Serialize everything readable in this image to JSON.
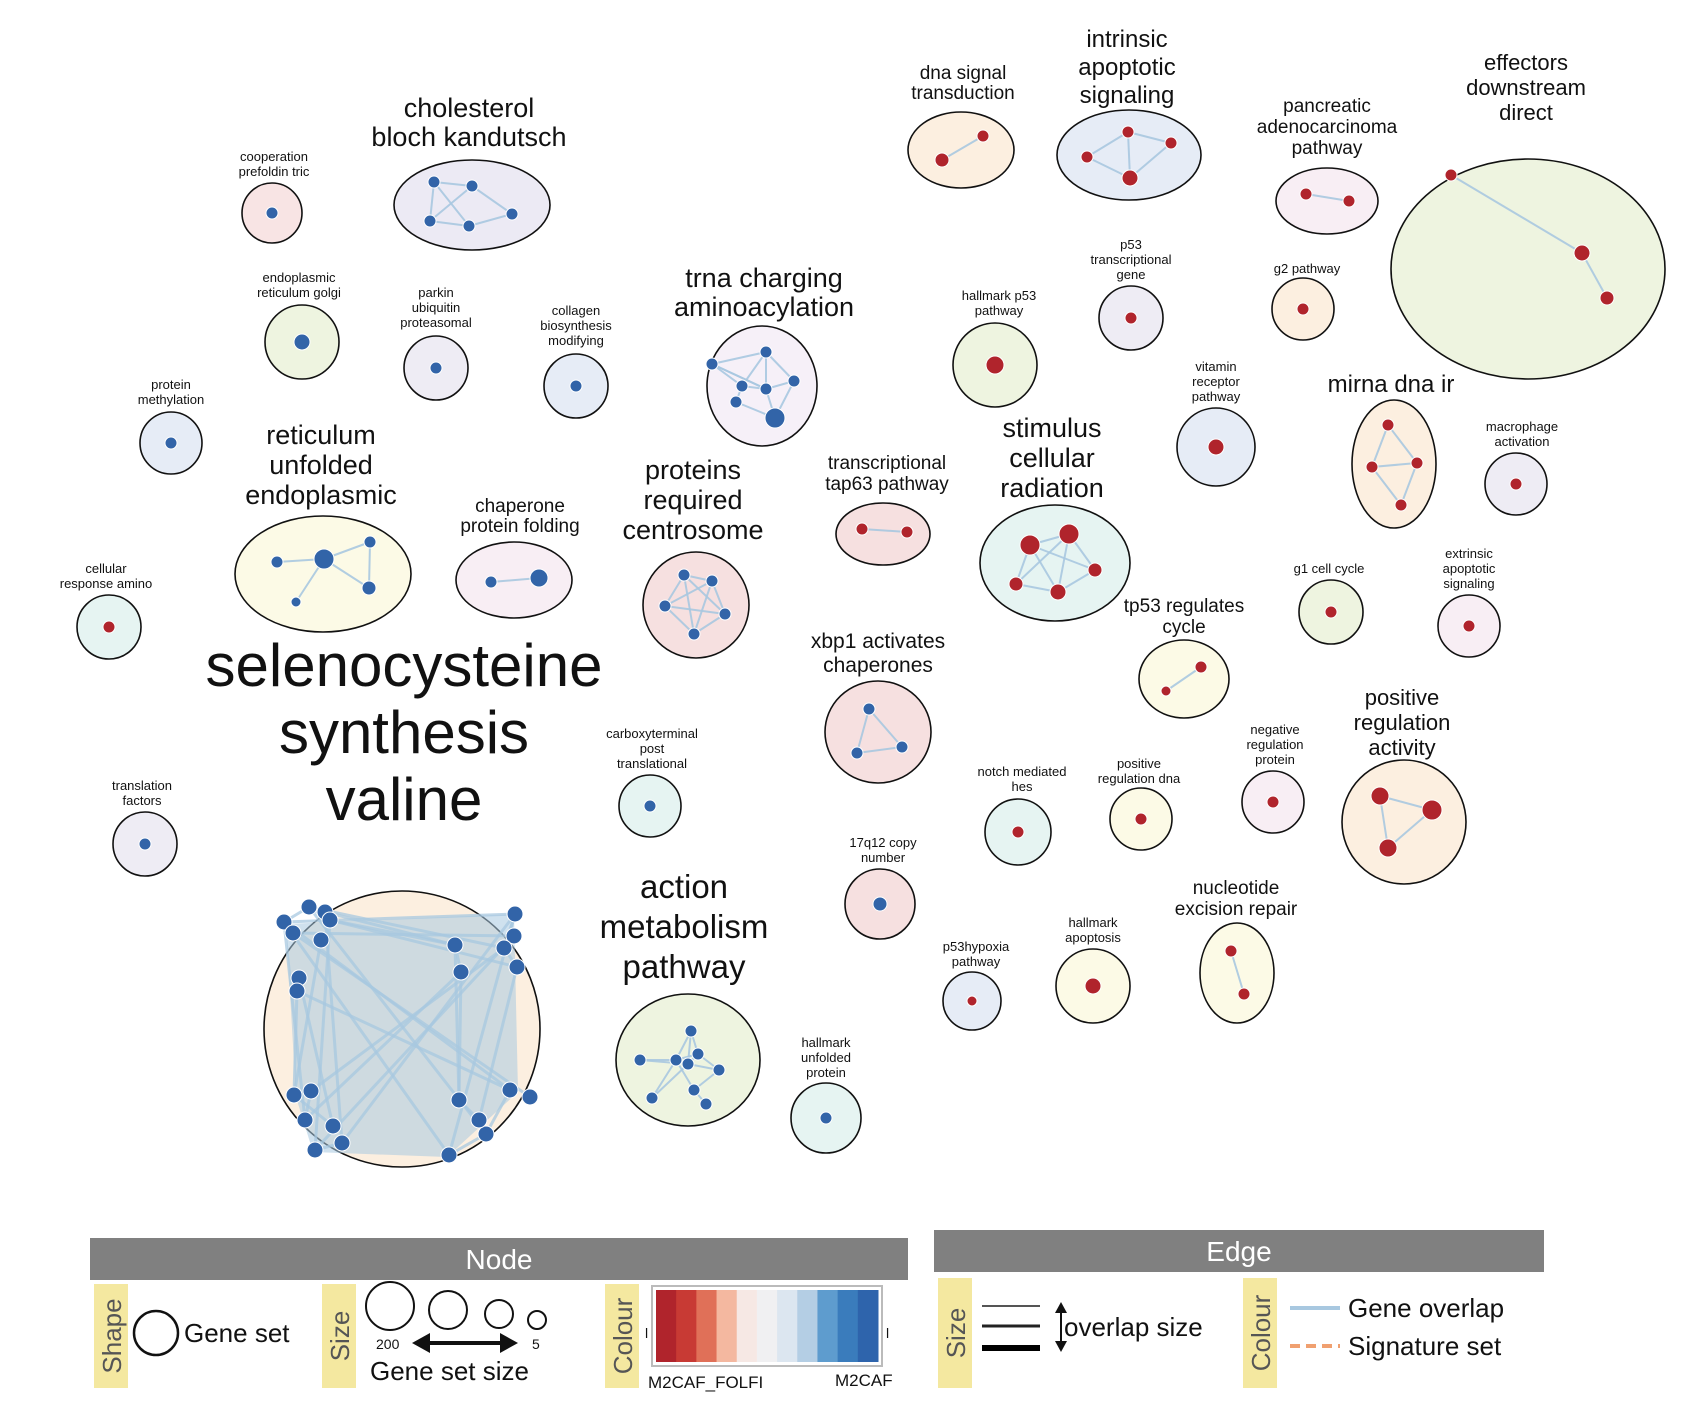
{
  "colors": {
    "red_node": "#b0242c",
    "blue_node": "#3264a8",
    "edge_gene_overlap": "#a8c8e0",
    "edge_signature_set": "#f0a070",
    "legend_bar": "#808080",
    "legend_yellow": "#f4e8a0"
  },
  "clusters": [
    {
      "id": "c1",
      "label": [
        "cooperation",
        "prefoldin tric"
      ],
      "fill": "#f8e4e4",
      "color": "blue"
    },
    {
      "id": "c2",
      "label": [
        "cholesterol",
        "bloch kandutsch"
      ],
      "fill": "#eceaf4",
      "color": "blue"
    },
    {
      "id": "c3",
      "label": [
        "endoplasmic",
        "reticulum golgi"
      ],
      "fill": "#eef4e0",
      "color": "blue"
    },
    {
      "id": "c4",
      "label": [
        "parkin",
        "ubiquitin",
        "proteasomal"
      ],
      "fill": "#eeecf4",
      "color": "blue"
    },
    {
      "id": "c5",
      "label": [
        "collagen",
        "biosynthesis",
        "modifying"
      ],
      "fill": "#e6ecf6",
      "color": "blue"
    },
    {
      "id": "c6",
      "label": [
        "protein",
        "methylation"
      ],
      "fill": "#e6ecf6",
      "color": "blue"
    },
    {
      "id": "c7",
      "label": [
        "trna charging",
        "aminoacylation"
      ],
      "fill": "#f6f0f8",
      "color": "blue"
    },
    {
      "id": "c8",
      "label": [
        "reticulum",
        "unfolded",
        "endoplasmic"
      ],
      "fill": "#fcfae6",
      "color": "blue"
    },
    {
      "id": "c9",
      "label": [
        "chaperone",
        "protein folding"
      ],
      "fill": "#f8eef4",
      "color": "blue"
    },
    {
      "id": "c10",
      "label": [
        "proteins",
        "required",
        "centrosome"
      ],
      "fill": "#f6e0e0",
      "color": "blue"
    },
    {
      "id": "c11",
      "label": [
        "cellular",
        "response amino"
      ],
      "fill": "#e6f4f2",
      "color": "red"
    },
    {
      "id": "c12",
      "label": [
        "selenocysteine",
        "synthesis",
        "valine"
      ],
      "fill": "#fcefe0",
      "color": "blue"
    },
    {
      "id": "c13",
      "label": [
        "carboxyterminal",
        "post",
        "translational"
      ],
      "fill": "#e6f4f2",
      "color": "blue"
    },
    {
      "id": "c14",
      "label": [
        "translation",
        "factors"
      ],
      "fill": "#eeecf4",
      "color": "blue"
    },
    {
      "id": "c15",
      "label": [
        "action",
        "metabolism",
        "pathway"
      ],
      "fill": "#eef4e0",
      "color": "blue"
    },
    {
      "id": "c16",
      "label": [
        "hallmark",
        "unfolded",
        "protein"
      ],
      "fill": "#e6f4f2",
      "color": "blue"
    },
    {
      "id": "c17",
      "label": [
        "xbp1 activates",
        "chaperones"
      ],
      "fill": "#f6e0e0",
      "color": "blue"
    },
    {
      "id": "c18",
      "label": [
        "17q12 copy",
        "number"
      ],
      "fill": "#f6e0e0",
      "color": "blue"
    },
    {
      "id": "c19",
      "label": [
        "transcriptional",
        "tap63 pathway"
      ],
      "fill": "#f6e0e0",
      "color": "red"
    },
    {
      "id": "c20",
      "label": [
        "dna signal",
        "transduction"
      ],
      "fill": "#fcefe0",
      "color": "red"
    },
    {
      "id": "c21",
      "label": [
        "intrinsic",
        "apoptotic",
        "signaling"
      ],
      "fill": "#e6ecf6",
      "color": "red"
    },
    {
      "id": "c22",
      "label": [
        "pancreatic",
        "adenocarcinoma",
        "pathway"
      ],
      "fill": "#f8eef4",
      "color": "red"
    },
    {
      "id": "c23",
      "label": [
        "effectors",
        "downstream",
        "direct"
      ],
      "fill": "#eef4e0",
      "color": "red"
    },
    {
      "id": "c24",
      "label": [
        "hallmark p53",
        "pathway"
      ],
      "fill": "#eef4e0",
      "color": "red"
    },
    {
      "id": "c25",
      "label": [
        "p53",
        "transcriptional",
        "gene"
      ],
      "fill": "#eeecf4",
      "color": "red"
    },
    {
      "id": "c26",
      "label": [
        "g2 pathway"
      ],
      "fill": "#fcefe0",
      "color": "red"
    },
    {
      "id": "c27",
      "label": [
        "vitamin",
        "receptor",
        "pathway"
      ],
      "fill": "#e6ecf6",
      "color": "red"
    },
    {
      "id": "c28",
      "label": [
        "mirna dna ir"
      ],
      "fill": "#fcefe0",
      "color": "red"
    },
    {
      "id": "c29",
      "label": [
        "macrophage",
        "activation"
      ],
      "fill": "#eeecf4",
      "color": "red"
    },
    {
      "id": "c30",
      "label": [
        "stimulus",
        "cellular",
        "radiation"
      ],
      "fill": "#e6f4f2",
      "color": "red"
    },
    {
      "id": "c31",
      "label": [
        "g1 cell cycle"
      ],
      "fill": "#eef4e0",
      "color": "red"
    },
    {
      "id": "c32",
      "label": [
        "extrinsic",
        "apoptotic",
        "signaling"
      ],
      "fill": "#f8eef4",
      "color": "red"
    },
    {
      "id": "c33",
      "label": [
        "tp53 regulates",
        "cycle"
      ],
      "fill": "#fcfae6",
      "color": "red"
    },
    {
      "id": "c34",
      "label": [
        "positive",
        "regulation",
        "activity"
      ],
      "fill": "#fcefe0",
      "color": "red"
    },
    {
      "id": "c35",
      "label": [
        "negative",
        "regulation",
        "protein"
      ],
      "fill": "#f8eef4",
      "color": "red"
    },
    {
      "id": "c36",
      "label": [
        "notch mediated",
        "hes"
      ],
      "fill": "#e6f4f2",
      "color": "red"
    },
    {
      "id": "c37",
      "label": [
        "positive",
        "regulation dna"
      ],
      "fill": "#fcfae6",
      "color": "red"
    },
    {
      "id": "c38",
      "label": [
        "nucleotide",
        "excision repair"
      ],
      "fill": "#fcfae6",
      "color": "red"
    },
    {
      "id": "c39",
      "label": [
        "p53hypoxia",
        "pathway"
      ],
      "fill": "#e6ecf6",
      "color": "red"
    },
    {
      "id": "c40",
      "label": [
        "hallmark",
        "apoptosis"
      ],
      "fill": "#fcfae6",
      "color": "red"
    }
  ],
  "legend": {
    "node": {
      "title": "Node",
      "shape_heading": "Shape",
      "shape_label": "Gene set",
      "size_heading": "Size",
      "size_max": "200",
      "size_min": "5",
      "size_label": "Gene set size",
      "colour_heading": "Colour",
      "colour_left_label": "M2CAF_FOLFI",
      "colour_right_label": "M2CAF",
      "colour_left_tick": "l",
      "colour_right_tick": "l",
      "colour_scale": [
        "#b0242c",
        "#c83a34",
        "#e07058",
        "#f4b8a0",
        "#f6e8e4",
        "#f0f0f2",
        "#dce6f0",
        "#b4cee4",
        "#5e9cce",
        "#3a7cbc",
        "#2e64ac"
      ]
    },
    "edge": {
      "title": "Edge",
      "size_heading": "Size",
      "size_label": "overlap size",
      "colour_heading": "Colour",
      "gene_overlap_label": "Gene overlap",
      "signature_set_label": "Signature set"
    }
  }
}
